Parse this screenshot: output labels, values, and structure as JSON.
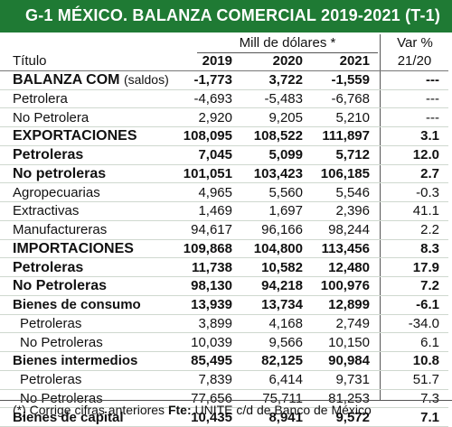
{
  "title": "G-1  MÉXICO. BALANZA COMERCIAL 2019-2021 (T-1)",
  "header": {
    "units": "Mill de dólares *",
    "var_label": "Var %",
    "col_label": "Título",
    "years": [
      "2019",
      "2020",
      "2021"
    ],
    "var_period": "21/20"
  },
  "rows": [
    {
      "label": "BALANZA COM",
      "sublabel": "(saldos)",
      "v2019": "-1,773",
      "v2020": "3,722",
      "v2021": "-1,559",
      "var": "---",
      "style": "bold big balanza"
    },
    {
      "label": "Petrolera",
      "v2019": "-4,693",
      "v2020": "-5,483",
      "v2021": "-6,768",
      "var": "---",
      "style": ""
    },
    {
      "label": "No Petrolera",
      "v2019": "2,920",
      "v2020": "9,205",
      "v2021": "5,210",
      "var": "---",
      "style": ""
    },
    {
      "label": "EXPORTACIONES",
      "v2019": "108,095",
      "v2020": "108,522",
      "v2021": "111,897",
      "var": "3.1",
      "style": "bold big"
    },
    {
      "label": "Petroleras",
      "v2019": "7,045",
      "v2020": "5,099",
      "v2021": "5,712",
      "var": "12.0",
      "style": "bold big"
    },
    {
      "label": "No petroleras",
      "v2019": "101,051",
      "v2020": "103,423",
      "v2021": "106,185",
      "var": "2.7",
      "style": "bold big"
    },
    {
      "label": "Agropecuarias",
      "v2019": "4,965",
      "v2020": "5,560",
      "v2021": "5,546",
      "var": "-0.3",
      "style": ""
    },
    {
      "label": "Extractivas",
      "v2019": "1,469",
      "v2020": "1,697",
      "v2021": "2,396",
      "var": "41.1",
      "style": ""
    },
    {
      "label": "Manufactureras",
      "v2019": "94,617",
      "v2020": "96,166",
      "v2021": "98,244",
      "var": "2.2",
      "style": ""
    },
    {
      "label": "IMPORTACIONES",
      "v2019": "109,868",
      "v2020": "104,800",
      "v2021": "113,456",
      "var": "8.3",
      "style": "bold big"
    },
    {
      "label": "Petroleras",
      "v2019": "11,738",
      "v2020": "10,582",
      "v2021": "12,480",
      "var": "17.9",
      "style": "bold big"
    },
    {
      "label": "No Petroleras",
      "v2019": "98,130",
      "v2020": "94,218",
      "v2021": "100,976",
      "var": "7.2",
      "style": "bold big"
    },
    {
      "label": "Bienes de consumo",
      "v2019": "13,939",
      "v2020": "13,734",
      "v2021": "12,899",
      "var": "-6.1",
      "style": "bold"
    },
    {
      "label": "Petroleras",
      "v2019": "3,899",
      "v2020": "4,168",
      "v2021": "2,749",
      "var": "-34.0",
      "style": "indent"
    },
    {
      "label": "No Petroleras",
      "v2019": "10,039",
      "v2020": "9,566",
      "v2021": "10,150",
      "var": "6.1",
      "style": "indent"
    },
    {
      "label": "Bienes intermedios",
      "v2019": "85,495",
      "v2020": "82,125",
      "v2021": "90,984",
      "var": "10.8",
      "style": "bold"
    },
    {
      "label": "Petroleras",
      "v2019": "7,839",
      "v2020": "6,414",
      "v2021": "9,731",
      "var": "51.7",
      "style": "indent"
    },
    {
      "label": "No Petroleras",
      "v2019": "77,656",
      "v2020": "75,711",
      "v2021": "81,253",
      "var": "7.3",
      "style": "indent"
    },
    {
      "label": "Bienes de capital",
      "v2019": "10,435",
      "v2020": "8,941",
      "v2021": "9,572",
      "var": "7.1",
      "style": "bold"
    }
  ],
  "footer": {
    "note": "(*) Corrige cifras anteriores ",
    "source_label": "Fte:",
    "source_text": " UNITE c/d de Banco de México"
  },
  "colors": {
    "title_bg": "#1f7a34",
    "title_text": "#ffffff"
  }
}
